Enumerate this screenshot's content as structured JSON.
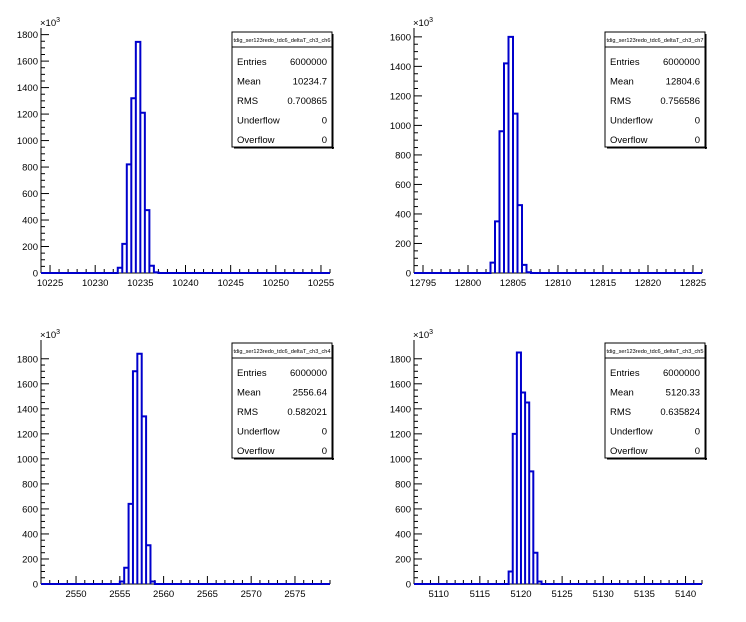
{
  "colors": {
    "histogram_line": "#0000cc",
    "axis": "#000000",
    "background": "#ffffff"
  },
  "chart_data": [
    {
      "type": "bar",
      "stats_title": "tdig_ser123redo_tdc6_deltaT_ch3_ch6",
      "stats": [
        {
          "label": "Entries",
          "value": "6000000"
        },
        {
          "label": "Mean",
          "value": "10234.7"
        },
        {
          "label": "RMS",
          "value": "0.700865"
        },
        {
          "label": "Underflow",
          "value": "0"
        },
        {
          "label": "Overflow",
          "value": "0"
        }
      ],
      "multiplier_label": "×10",
      "multiplier_exp": "3",
      "xlim": [
        10224,
        10256
      ],
      "ylim": [
        0,
        1850
      ],
      "x_ticks": [
        10225,
        10230,
        10235,
        10240,
        10245,
        10250,
        10255
      ],
      "y_ticks": [
        0,
        200,
        400,
        600,
        800,
        1000,
        1200,
        1400,
        1600,
        1800
      ],
      "bin_width": 0.5,
      "bins": [
        [
          10232.5,
          40
        ],
        [
          10233.0,
          220
        ],
        [
          10233.5,
          820
        ],
        [
          10234.0,
          1320
        ],
        [
          10234.5,
          1745
        ],
        [
          10235.0,
          1210
        ],
        [
          10235.5,
          475
        ],
        [
          10236.0,
          55
        ],
        [
          10236.5,
          5
        ]
      ]
    },
    {
      "type": "bar",
      "stats_title": "tdig_ser123redo_tdc6_deltaT_ch3_ch7",
      "stats": [
        {
          "label": "Entries",
          "value": "6000000"
        },
        {
          "label": "Mean",
          "value": "12804.6"
        },
        {
          "label": "RMS",
          "value": "0.756586"
        },
        {
          "label": "Underflow",
          "value": "0"
        },
        {
          "label": "Overflow",
          "value": "0"
        }
      ],
      "multiplier_label": "×10",
      "multiplier_exp": "3",
      "xlim": [
        12794,
        12826
      ],
      "ylim": [
        0,
        1660
      ],
      "x_ticks": [
        12795,
        12800,
        12805,
        12810,
        12815,
        12820,
        12825
      ],
      "y_ticks": [
        0,
        200,
        400,
        600,
        800,
        1000,
        1200,
        1400,
        1600
      ],
      "bin_width": 0.5,
      "bins": [
        [
          12802.5,
          70
        ],
        [
          12803.0,
          350
        ],
        [
          12803.5,
          960
        ],
        [
          12804.0,
          1420
        ],
        [
          12804.5,
          1600
        ],
        [
          12805.0,
          1080
        ],
        [
          12805.5,
          460
        ],
        [
          12806.0,
          55
        ],
        [
          12806.5,
          5
        ]
      ]
    },
    {
      "type": "bar",
      "stats_title": "tdig_ser123redo_tdc6_deltaT_ch3_ch4",
      "stats": [
        {
          "label": "Entries",
          "value": "6000000"
        },
        {
          "label": "Mean",
          "value": "2556.64"
        },
        {
          "label": "RMS",
          "value": "0.582021"
        },
        {
          "label": "Underflow",
          "value": "0"
        },
        {
          "label": "Overflow",
          "value": "0"
        }
      ],
      "multiplier_label": "×10",
      "multiplier_exp": "3",
      "xlim": [
        2546,
        2579
      ],
      "ylim": [
        0,
        1950
      ],
      "x_ticks": [
        2550,
        2555,
        2560,
        2565,
        2570,
        2575
      ],
      "y_ticks": [
        0,
        200,
        400,
        600,
        800,
        1000,
        1200,
        1400,
        1600,
        1800
      ],
      "bin_width": 0.5,
      "bins": [
        [
          2555.0,
          20
        ],
        [
          2555.5,
          130
        ],
        [
          2556.0,
          640
        ],
        [
          2556.5,
          1700
        ],
        [
          2557.0,
          1840
        ],
        [
          2557.5,
          1340
        ],
        [
          2558.0,
          310
        ],
        [
          2558.5,
          20
        ]
      ]
    },
    {
      "type": "bar",
      "stats_title": "tdig_ser123redo_tdc6_deltaT_ch3_ch5",
      "stats": [
        {
          "label": "Entries",
          "value": "6000000"
        },
        {
          "label": "Mean",
          "value": "5120.33"
        },
        {
          "label": "RMS",
          "value": "0.635824"
        },
        {
          "label": "Underflow",
          "value": "0"
        },
        {
          "label": "Overflow",
          "value": "0"
        }
      ],
      "multiplier_label": "×10",
      "multiplier_exp": "3",
      "xlim": [
        5107,
        5142
      ],
      "ylim": [
        0,
        1950
      ],
      "x_ticks": [
        5110,
        5115,
        5120,
        5125,
        5130,
        5135,
        5140
      ],
      "y_ticks": [
        0,
        200,
        400,
        600,
        800,
        1000,
        1200,
        1400,
        1600,
        1800
      ],
      "bin_width": 0.5,
      "bins": [
        [
          5118.5,
          100
        ],
        [
          5119.0,
          1200
        ],
        [
          5119.5,
          1850
        ],
        [
          5120.0,
          1530
        ],
        [
          5120.5,
          1450
        ],
        [
          5121.0,
          900
        ],
        [
          5121.5,
          250
        ],
        [
          5122.0,
          20
        ]
      ]
    }
  ]
}
